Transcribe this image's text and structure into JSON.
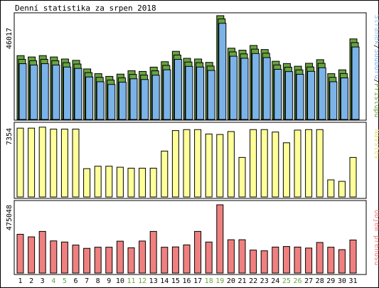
{
  "chart_data": {
    "type": "bar",
    "title": "Denní statistika za srpen 2018",
    "categories": [
      "1",
      "2",
      "3",
      "4",
      "5",
      "6",
      "7",
      "8",
      "9",
      "10",
      "11",
      "12",
      "13",
      "14",
      "15",
      "16",
      "17",
      "18",
      "19",
      "20",
      "21",
      "22",
      "23",
      "24",
      "25",
      "26",
      "27",
      "28",
      "29",
      "30",
      "31"
    ],
    "weekend_categories": [
      "4",
      "5",
      "11",
      "12",
      "18",
      "19",
      "25",
      "26"
    ],
    "panels": [
      {
        "id": "traffic",
        "side_label_parts": [
          "Stránek",
          "/",
          "Souborů",
          "/",
          "Přístupů"
        ],
        "side_label_colors": [
          "#8fbfe0",
          "#000000",
          "#7bb3e8",
          "#000000",
          "#6aa342"
        ],
        "max_label": "46017",
        "ymax": 46017,
        "series": [
          {
            "name": "Přístupů",
            "color": "#6aa342",
            "values": [
              28300,
              27700,
              28300,
              27700,
              26800,
              26200,
              22400,
              20300,
              19100,
              20100,
              21600,
              21300,
              23200,
              25600,
              30200,
              27100,
              26800,
              25300,
              46017,
              31600,
              30700,
              32800,
              31000,
              25800,
              24800,
              23600,
              24900,
              26500,
              20300,
              22000,
              35700
            ]
          },
          {
            "name": "Souborů",
            "color": "#6aa342",
            "values": [
              27300,
              26700,
              27300,
              26700,
              25800,
              25200,
              21400,
              19300,
              18100,
              19100,
              20600,
              20300,
              22200,
              24600,
              29200,
              26100,
              25800,
              24300,
              45200,
              30600,
              29700,
              31800,
              30000,
              24800,
              23800,
              22600,
              23900,
              25500,
              19300,
              21000,
              34700
            ]
          },
          {
            "name": "Stránek",
            "color": "#7bb3e8",
            "values": [
              26300,
              25700,
              26300,
              25700,
              24800,
              24200,
              20400,
              18300,
              17100,
              18100,
              19600,
              19300,
              21200,
              23600,
              28200,
              25100,
              24800,
              23300,
              44200,
              29600,
              28700,
              30800,
              29000,
              23800,
              22800,
              21600,
              22900,
              24500,
              18300,
              20000,
              33700
            ]
          }
        ]
      },
      {
        "id": "visits",
        "side_label_parts": [
          "Návštěv"
        ],
        "side_label_colors": [
          "#e0e07a"
        ],
        "max_label": "7354",
        "ymax": 7354,
        "series": [
          {
            "name": "Návštěv",
            "color": "#ffff99",
            "values": [
              7050,
              7050,
              7150,
              6950,
              6950,
              6950,
              2900,
              3150,
              3150,
              3050,
              2950,
              2950,
              2950,
              4700,
              6800,
              6900,
              6900,
              6450,
              6400,
              6700,
              4050,
              6900,
              6900,
              6650,
              5550,
              6850,
              6900,
              6900,
              1750,
              1600,
              4050
            ]
          }
        ]
      },
      {
        "id": "transfer",
        "side_label_parts": [
          "Objem přenosu"
        ],
        "side_label_colors": [
          "#f08080"
        ],
        "max_label": "475048",
        "ymax": 475048,
        "series": [
          {
            "name": "Objem přenosu",
            "color": "#f08080",
            "values": [
              270000,
              252000,
              290000,
              224000,
              216000,
              195000,
              172000,
              180000,
              180000,
              222000,
              176000,
              223000,
              290000,
              180000,
              182000,
              196000,
              290000,
              216000,
              475048,
              232000,
              232000,
              160000,
              155000,
              181000,
              185000,
              181000,
              174000,
              213000,
              180000,
              163000,
              230000
            ]
          }
        ]
      }
    ],
    "colors": {
      "weekday_label": "#000000",
      "weekend_label": "#6aa342",
      "border": "#000000",
      "axis_label": "#000000"
    }
  }
}
